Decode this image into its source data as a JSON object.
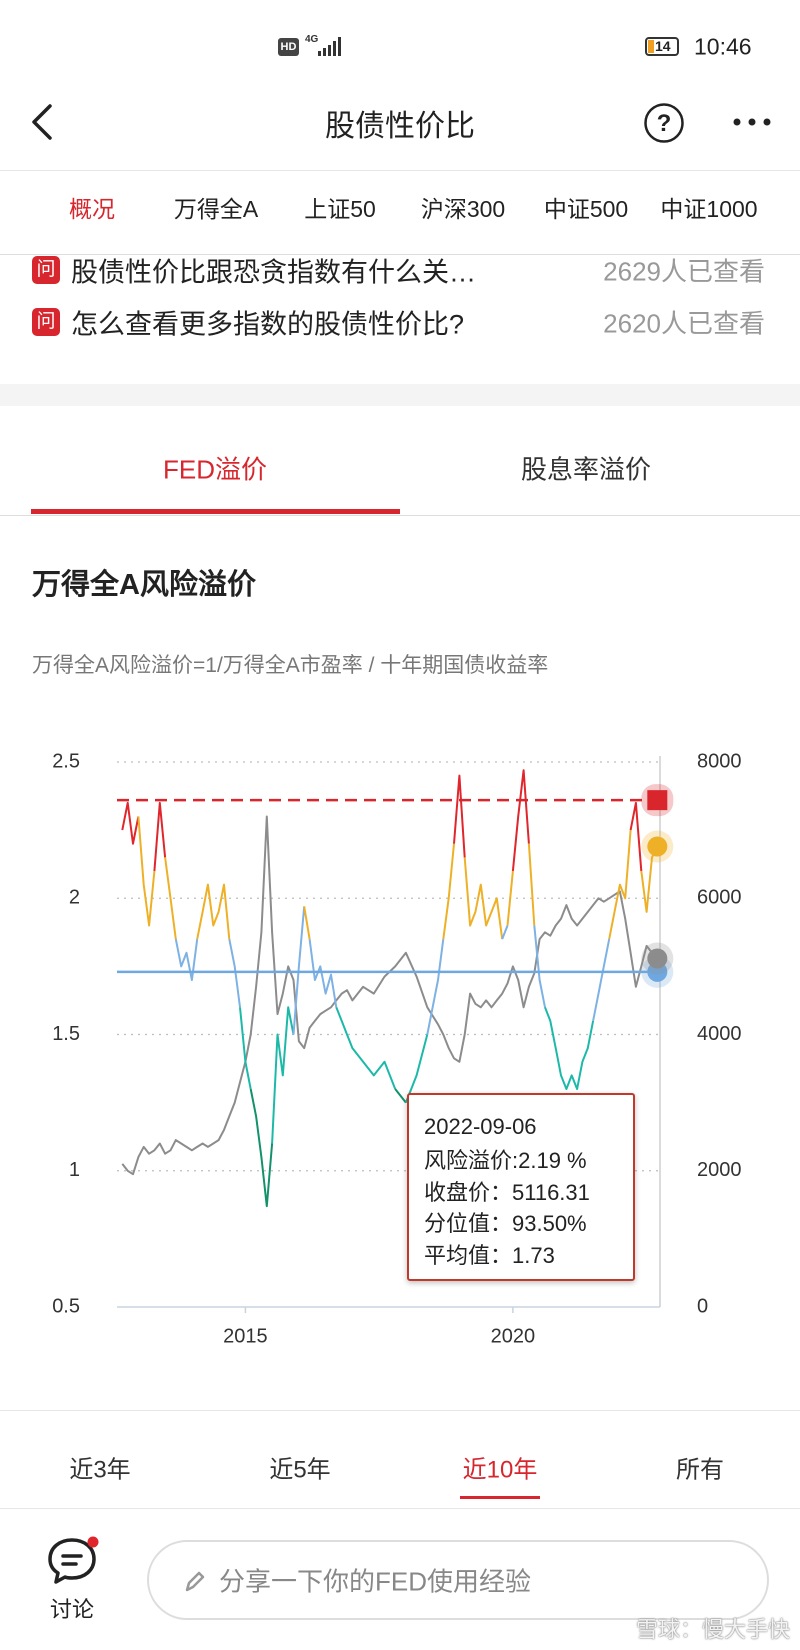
{
  "status_bar": {
    "hd": "HD",
    "network": "4G",
    "battery": "14",
    "time": "10:46"
  },
  "nav": {
    "title": "股债性价比"
  },
  "index_tabs": {
    "items": [
      "概况",
      "万得全A",
      "上证50",
      "沪深300",
      "中证500",
      "中证1000"
    ],
    "active": 0
  },
  "questions": [
    {
      "badge": "问",
      "text": "股债性价比跟恐贪指数有什么关…",
      "views": "2629人已查看"
    },
    {
      "badge": "问",
      "text": "怎么查看更多指数的股债性价比?",
      "views": "2620人已查看"
    }
  ],
  "premium_tabs": {
    "items": [
      "FED溢价",
      "股息率溢价"
    ],
    "active": 0
  },
  "section": {
    "title": "万得全A风险溢价",
    "formula": "万得全A风险溢价=1/万得全A市盈率 / 十年期国债收益率"
  },
  "chart_data": {
    "type": "line",
    "x": [
      2012.7,
      2012.8,
      2012.9,
      2013.0,
      2013.1,
      2013.2,
      2013.3,
      2013.4,
      2013.5,
      2013.6,
      2013.7,
      2013.8,
      2013.9,
      2014.0,
      2014.1,
      2014.2,
      2014.3,
      2014.4,
      2014.5,
      2014.6,
      2014.7,
      2014.8,
      2014.9,
      2015.0,
      2015.1,
      2015.2,
      2015.3,
      2015.4,
      2015.5,
      2015.6,
      2015.7,
      2015.8,
      2015.9,
      2016.0,
      2016.1,
      2016.2,
      2016.3,
      2016.4,
      2016.5,
      2016.6,
      2016.7,
      2016.8,
      2016.9,
      2017.0,
      2017.2,
      2017.4,
      2017.6,
      2017.8,
      2018.0,
      2018.2,
      2018.4,
      2018.6,
      2018.7,
      2018.8,
      2018.9,
      2019.0,
      2019.1,
      2019.2,
      2019.3,
      2019.4,
      2019.5,
      2019.6,
      2019.7,
      2019.8,
      2019.9,
      2020.0,
      2020.1,
      2020.2,
      2020.3,
      2020.4,
      2020.5,
      2020.6,
      2020.7,
      2020.8,
      2020.9,
      2021.0,
      2021.1,
      2021.2,
      2021.3,
      2021.4,
      2021.5,
      2021.6,
      2021.7,
      2021.8,
      2021.9,
      2022.0,
      2022.1,
      2022.2,
      2022.3,
      2022.4,
      2022.5,
      2022.6,
      2022.7
    ],
    "xlim": [
      2012.6,
      2022.75
    ],
    "xticks": [
      2015,
      2020
    ],
    "ylim": [
      0.5,
      2.5
    ],
    "yticks": [
      0.5,
      1,
      1.5,
      2,
      2.5
    ],
    "y2lim": [
      0,
      8000
    ],
    "y2ticks": [
      0,
      2000,
      4000,
      6000,
      8000
    ],
    "grid": true,
    "series": [
      {
        "color_bands": [
          {
            "min": 2.2,
            "color": "#e0262c"
          },
          {
            "min": 1.9,
            "color": "#eeb027"
          },
          {
            "min": 1.6,
            "color": "#7eb1e4"
          },
          {
            "min": 1.3,
            "color": "#1db9a8"
          },
          {
            "min": 0,
            "color": "#13916b"
          }
        ],
        "values": [
          2.25,
          2.35,
          2.2,
          2.3,
          2.05,
          1.9,
          2.1,
          2.35,
          2.15,
          2.0,
          1.85,
          1.75,
          1.8,
          1.7,
          1.85,
          1.95,
          2.05,
          1.9,
          1.95,
          2.05,
          1.85,
          1.75,
          1.6,
          1.4,
          1.3,
          1.2,
          1.05,
          0.87,
          1.1,
          1.5,
          1.35,
          1.6,
          1.5,
          1.75,
          1.97,
          1.85,
          1.7,
          1.75,
          1.65,
          1.72,
          1.6,
          1.55,
          1.5,
          1.45,
          1.4,
          1.35,
          1.4,
          1.3,
          1.25,
          1.35,
          1.5,
          1.7,
          1.85,
          2.0,
          2.2,
          2.45,
          2.15,
          1.9,
          1.95,
          2.05,
          1.9,
          1.95,
          2.0,
          1.85,
          1.9,
          2.1,
          2.3,
          2.47,
          2.2,
          1.9,
          1.7,
          1.6,
          1.55,
          1.45,
          1.35,
          1.3,
          1.35,
          1.3,
          1.4,
          1.45,
          1.55,
          1.65,
          1.75,
          1.85,
          1.95,
          2.05,
          2.0,
          2.25,
          2.35,
          2.1,
          1.95,
          2.15,
          2.19
        ]
      },
      {
        "axis": "y2",
        "color": "#8c8c8c",
        "values": [
          2100,
          2000,
          1950,
          2200,
          2350,
          2250,
          2300,
          2400,
          2250,
          2300,
          2450,
          2400,
          2350,
          2300,
          2350,
          2400,
          2350,
          2400,
          2450,
          2600,
          2800,
          3000,
          3300,
          3600,
          4000,
          4700,
          5500,
          7200,
          5500,
          4300,
          4600,
          5000,
          4800,
          3900,
          3800,
          4100,
          4200,
          4300,
          4350,
          4400,
          4500,
          4600,
          4650,
          4500,
          4700,
          4600,
          4850,
          5000,
          5200,
          4850,
          4400,
          4150,
          4000,
          3800,
          3650,
          3600,
          4000,
          4600,
          4450,
          4400,
          4500,
          4400,
          4500,
          4600,
          4750,
          5000,
          4800,
          4400,
          4700,
          4900,
          5400,
          5500,
          5450,
          5600,
          5700,
          5900,
          5700,
          5600,
          5700,
          5800,
          5900,
          6000,
          5950,
          6000,
          6050,
          6100,
          5700,
          5200,
          4700,
          5000,
          5300,
          5200,
          5116.31
        ]
      }
    ],
    "reference_lines": [
      {
        "value": 2.36,
        "color": "#d9262c",
        "dashed": true
      },
      {
        "value": 1.73,
        "color": "#6fa8e0",
        "dashed": false
      }
    ]
  },
  "tooltip": {
    "lines": [
      "2022-09-06",
      "风险溢价:2.19 %",
      "收盘价：5116.31",
      "分位值：93.50%",
      "平均值：1.73"
    ]
  },
  "range_tabs": {
    "items": [
      "近3年",
      "近5年",
      "近10年",
      "所有"
    ],
    "active": 2
  },
  "bottom_bar": {
    "discuss": "讨论",
    "placeholder": "分享一下你的FED使用经验"
  },
  "watermark": "雪球：慢大手快"
}
